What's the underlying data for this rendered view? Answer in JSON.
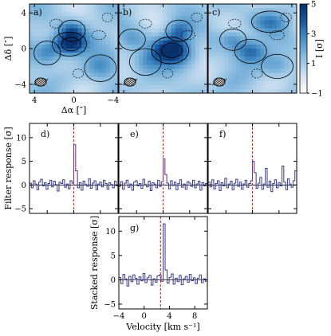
{
  "chart_data": [
    {
      "type": "heatmap",
      "panels": [
        {
          "label": "a)",
          "show_yaxis": true
        },
        {
          "label": "b)",
          "show_yaxis": false
        },
        {
          "label": "c)",
          "show_yaxis": false
        }
      ],
      "xlabel": "Δα [″]",
      "ylabel": "Δδ [″]",
      "xlim": [
        4.5,
        -4.5
      ],
      "ylim": [
        -5,
        5
      ],
      "x_ticks": [
        4,
        0,
        -4
      ],
      "y_ticks": [
        4,
        0,
        -4
      ],
      "colorbar": {
        "label": "I [σ]",
        "min": -1,
        "max": 5,
        "ticks": [
          5,
          3,
          1,
          -1
        ],
        "colormap": [
          "#ffffff",
          "#cfe1f1",
          "#8cbde0",
          "#4a91c7",
          "#1a5aa0",
          "#08306b"
        ]
      },
      "contour_color": "#000000",
      "beam": "ellipse lower-left"
    },
    {
      "type": "line",
      "panels": [
        {
          "label": "d)",
          "peak": 8.5,
          "values": [
            0.4,
            -0.6,
            0.9,
            0.2,
            -1.0,
            0.6,
            1.2,
            -0.2,
            0.5,
            -0.9,
            0.3,
            1.0,
            -0.4,
            0.8,
            0.1,
            -1.3,
            0.6,
            0.3,
            1.1,
            -0.5,
            0.2,
            -0.8,
            0.9,
            0.4,
            8.5,
            3.0,
            -0.6,
            0.5,
            -1.1,
            0.8,
            0.1,
            -0.3,
            1.3,
            -0.7,
            0.4,
            0.9,
            -1.0,
            0.2,
            0.6,
            -0.4,
            1.0,
            0.3,
            -0.9,
            0.5,
            0.1,
            -0.6,
            0.8,
            -0.2
          ]
        },
        {
          "label": "e)",
          "peak": 5.5,
          "values": [
            -0.3,
            0.7,
            -0.9,
            0.4,
            1.0,
            -0.5,
            0.2,
            -1.1,
            0.6,
            0.9,
            -0.2,
            0.3,
            -0.7,
            1.2,
            0.1,
            -0.4,
            0.8,
            -1.2,
            0.5,
            0.2,
            -0.6,
            1.0,
            -0.3,
            0.7,
            5.5,
            2.2,
            0.4,
            -0.8,
            0.9,
            -0.1,
            0.6,
            -1.0,
            0.3,
            1.1,
            -0.5,
            0.2,
            -0.9,
            0.7,
            0.4,
            -0.3,
            1.0,
            -0.6,
            0.2,
            0.8,
            -1.1,
            0.5,
            -0.2,
            0.3
          ]
        },
        {
          "label": "f)",
          "peak": 5.0,
          "values": [
            0.6,
            -0.4,
            1.1,
            -0.8,
            0.3,
            0.9,
            -1.2,
            0.5,
            -0.2,
            1.4,
            -0.6,
            0.2,
            0.8,
            -1.0,
            0.4,
            1.2,
            -0.3,
            0.6,
            -0.9,
            0.2,
            1.0,
            -0.5,
            0.3,
            0.9,
            5.0,
            2.6,
            -0.7,
            0.4,
            1.6,
            -0.9,
            0.2,
            3.5,
            -0.5,
            0.8,
            -1.4,
            0.3,
            1.1,
            -0.6,
            0.5,
            -0.2,
            4.0,
            0.6,
            -1.0,
            1.3,
            0.2,
            -0.5,
            0.9,
            3.0
          ]
        }
      ],
      "ylabel": "Filter response [σ]",
      "ylim": [
        -6,
        13
      ],
      "y_ticks": [
        10,
        5,
        0,
        -5
      ],
      "line_color": "#3b3a8f",
      "marker_color": "#d62728"
    },
    {
      "type": "line",
      "label": "g)",
      "xlabel": "Velocity [km s⁻¹]",
      "ylabel": "Stacked response [σ]",
      "xlim": [
        -4,
        10
      ],
      "ylim": [
        -6,
        13
      ],
      "x_ticks": [
        -4,
        0,
        4,
        8
      ],
      "y_ticks": [
        10,
        5,
        0,
        -5
      ],
      "marker_x": 2.6,
      "peak": 11.5,
      "values": [
        0.5,
        -0.8,
        1.1,
        0.2,
        -1.3,
        0.7,
        -0.4,
        1.0,
        0.3,
        -0.9,
        0.6,
        -0.2,
        1.3,
        -0.6,
        0.4,
        0.9,
        -1.1,
        0.2,
        -0.5,
        0.8,
        1.0,
        -0.3,
        11.5,
        2.0,
        -0.7,
        0.5,
        1.2,
        -0.9,
        0.3,
        -0.4,
        0.9,
        -1.0,
        0.2,
        0.7,
        -0.5,
        1.1,
        -0.2,
        0.4,
        -0.8,
        0.3,
        1.0,
        -0.6,
        0.2,
        -0.3
      ],
      "line_color": "#3b3a8f",
      "marker_color": "#d62728"
    }
  ]
}
